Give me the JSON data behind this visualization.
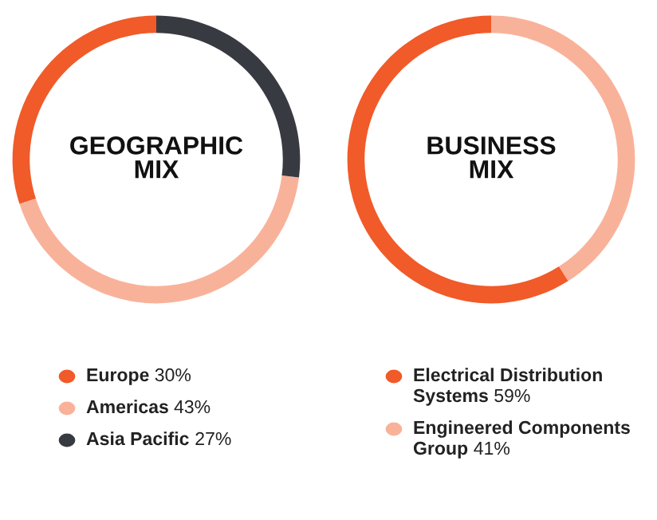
{
  "chart_data": [
    {
      "type": "donut",
      "title": "GEOGRAPHIC\nMIX",
      "categories": [
        "Europe",
        "Americas",
        "Asia Pacific"
      ],
      "values": [
        30,
        43,
        27
      ],
      "value_labels": [
        "30%",
        "43%",
        "27%"
      ],
      "colors": [
        "#f15a29",
        "#f9b29a",
        "#383a42"
      ],
      "legend": "bottom"
    },
    {
      "type": "donut",
      "title": "BUSINESS\nMIX",
      "categories": [
        "Electrical Distribution Systems",
        "Engineered Components Group"
      ],
      "values": [
        59,
        41
      ],
      "value_labels": [
        "59%",
        "41%"
      ],
      "colors": [
        "#f15a29",
        "#f9b29a"
      ],
      "legend": "bottom"
    }
  ]
}
